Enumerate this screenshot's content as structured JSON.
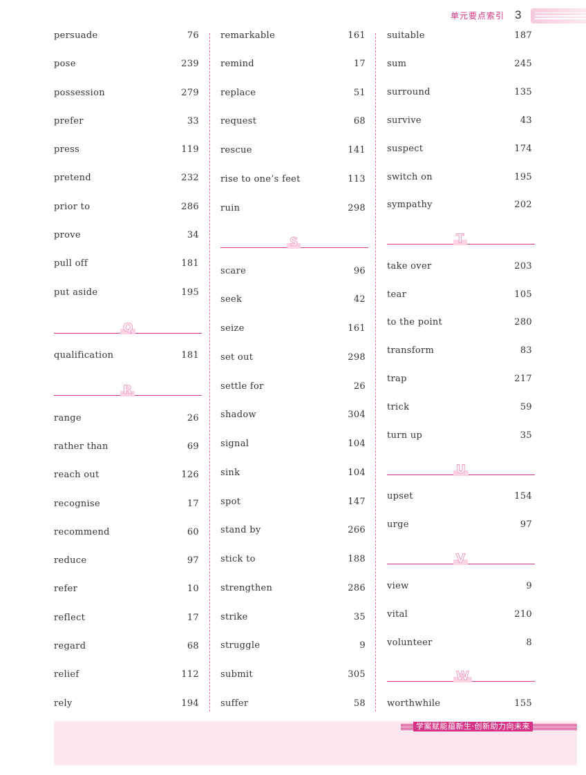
{
  "header": {
    "title": "单元要点索引",
    "page_number": "3"
  },
  "footer": {
    "slogan": "学案赋能蕴新生·创新助力向未来"
  },
  "columns": [
    [
      {
        "type": "entry",
        "word": "persuade",
        "page": "76"
      },
      {
        "type": "entry",
        "word": "pose",
        "page": "239"
      },
      {
        "type": "entry",
        "word": "possession",
        "page": "279"
      },
      {
        "type": "entry",
        "word": "prefer",
        "page": "33"
      },
      {
        "type": "entry",
        "word": "press",
        "page": "119"
      },
      {
        "type": "entry",
        "word": "pretend",
        "page": "232"
      },
      {
        "type": "entry",
        "word": "prior to",
        "page": "286"
      },
      {
        "type": "entry",
        "word": "prove",
        "page": "34"
      },
      {
        "type": "entry",
        "word": "pull off",
        "page": "181"
      },
      {
        "type": "entry",
        "word": "put aside",
        "page": "195"
      },
      {
        "type": "letter",
        "letter": "Q"
      },
      {
        "type": "entry",
        "word": "qualification",
        "page": "181"
      },
      {
        "type": "letter",
        "letter": "R"
      },
      {
        "type": "entry",
        "word": "range",
        "page": "26"
      },
      {
        "type": "entry",
        "word": "rather than",
        "page": "69"
      },
      {
        "type": "entry",
        "word": "reach out",
        "page": "126"
      },
      {
        "type": "entry",
        "word": "recognise",
        "page": "17"
      },
      {
        "type": "entry",
        "word": "recommend",
        "page": "60"
      },
      {
        "type": "entry",
        "word": "reduce",
        "page": "97"
      },
      {
        "type": "entry",
        "word": "refer",
        "page": "10"
      },
      {
        "type": "entry",
        "word": "reflect",
        "page": "17"
      },
      {
        "type": "entry",
        "word": "regard",
        "page": "68"
      },
      {
        "type": "entry",
        "word": "relief",
        "page": "112"
      },
      {
        "type": "entry",
        "word": "rely",
        "page": "194"
      }
    ],
    [
      {
        "type": "entry",
        "word": "remarkable",
        "page": "161"
      },
      {
        "type": "entry",
        "word": "remind",
        "page": "17"
      },
      {
        "type": "entry",
        "word": "replace",
        "page": "51"
      },
      {
        "type": "entry",
        "word": "request",
        "page": "68"
      },
      {
        "type": "entry",
        "word": "rescue",
        "page": "141"
      },
      {
        "type": "entry",
        "word": "rise to one’s feet",
        "page": "113"
      },
      {
        "type": "entry",
        "word": "ruin",
        "page": "298"
      },
      {
        "type": "letter",
        "letter": "S"
      },
      {
        "type": "entry",
        "word": "scare",
        "page": "96"
      },
      {
        "type": "entry",
        "word": "seek",
        "page": "42"
      },
      {
        "type": "entry",
        "word": "seize",
        "page": "161"
      },
      {
        "type": "entry",
        "word": "set out",
        "page": "298"
      },
      {
        "type": "entry",
        "word": "settle for",
        "page": "26"
      },
      {
        "type": "entry",
        "word": "shadow",
        "page": "304"
      },
      {
        "type": "entry",
        "word": "signal",
        "page": "104"
      },
      {
        "type": "entry",
        "word": "sink",
        "page": "104"
      },
      {
        "type": "entry",
        "word": "spot",
        "page": "147"
      },
      {
        "type": "entry",
        "word": "stand by",
        "page": "266"
      },
      {
        "type": "entry",
        "word": "stick to",
        "page": "188"
      },
      {
        "type": "entry",
        "word": "strengthen",
        "page": "286"
      },
      {
        "type": "entry",
        "word": "strike",
        "page": "35"
      },
      {
        "type": "entry",
        "word": "struggle",
        "page": "9"
      },
      {
        "type": "entry",
        "word": "submit",
        "page": "305"
      },
      {
        "type": "entry",
        "word": "suffer",
        "page": "58"
      }
    ],
    [
      {
        "type": "entry",
        "word": "suitable",
        "page": "187"
      },
      {
        "type": "entry",
        "word": "sum",
        "page": "245"
      },
      {
        "type": "entry",
        "word": "surround",
        "page": "135"
      },
      {
        "type": "entry",
        "word": "survive",
        "page": "43"
      },
      {
        "type": "entry",
        "word": "suspect",
        "page": "174"
      },
      {
        "type": "entry",
        "word": "switch on",
        "page": "195"
      },
      {
        "type": "entry",
        "word": "sympathy",
        "page": "202"
      },
      {
        "type": "letter",
        "letter": "T"
      },
      {
        "type": "entry",
        "word": "take over",
        "page": "203"
      },
      {
        "type": "entry",
        "word": "tear",
        "page": "105"
      },
      {
        "type": "entry",
        "word": "to the point",
        "page": "280"
      },
      {
        "type": "entry",
        "word": "transform",
        "page": "83"
      },
      {
        "type": "entry",
        "word": "trap",
        "page": "217"
      },
      {
        "type": "entry",
        "word": "trick",
        "page": "59"
      },
      {
        "type": "entry",
        "word": "turn up",
        "page": "35"
      },
      {
        "type": "letter",
        "letter": "U"
      },
      {
        "type": "entry",
        "word": "upset",
        "page": "154"
      },
      {
        "type": "entry",
        "word": "urge",
        "page": "97"
      },
      {
        "type": "letter",
        "letter": "V"
      },
      {
        "type": "entry",
        "word": "view",
        "page": "9"
      },
      {
        "type": "entry",
        "word": "vital",
        "page": "210"
      },
      {
        "type": "entry",
        "word": "volunteer",
        "page": "8"
      },
      {
        "type": "letter",
        "letter": "W"
      },
      {
        "type": "entry",
        "word": "worthwhile",
        "page": "155"
      }
    ]
  ]
}
